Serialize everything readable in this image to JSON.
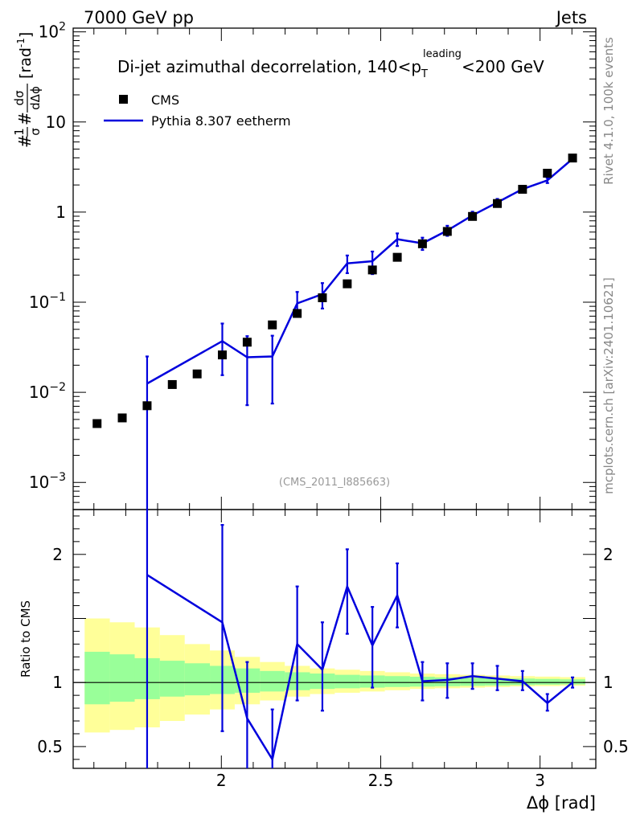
{
  "header": {
    "left": "7000 GeV pp",
    "right": "Jets"
  },
  "side_labels": {
    "rivet": "Rivet 4.1.0,  100k events",
    "mcplots": "mcplots.cern.ch [arXiv:2401.10621]"
  },
  "chart_data": {
    "type": "scatter",
    "title": "Di-jet azimuthal decorrelation, 140<p_T^leading<200 GeV",
    "title_parts": {
      "main": "Di-jet azimuthal decorrelation, 140<p",
      "sub": "T",
      "sup": "leading",
      "tail": "<200 GeV"
    },
    "analysis_tag": "(CMS_2011_I885663)",
    "xlabel": "Δϕ [rad]",
    "ylabel": "#frac{1}{σ}#frac{dσ}{dΔϕ} [rad⁻¹]",
    "ylabel_parts": {
      "pre": "#",
      "frac1_num": "1",
      "frac1_den": "σ",
      "mid": "#",
      "frac2_num": "dσ",
      "frac2_den": "dΔϕ",
      "unit": "[rad",
      "unit_sup": "-1",
      "unit_close": "]"
    },
    "ratio_ylabel": "Ratio to CMS",
    "xlim": [
      1.535,
      3.175
    ],
    "ylim": [
      0.0005,
      110
    ],
    "yscale": "log",
    "ratio_ylim": [
      0.33,
      2.35
    ],
    "x_ticks": [
      {
        "value": 2.0,
        "label": "2"
      },
      {
        "value": 2.5,
        "label": "2.5"
      },
      {
        "value": 3.0,
        "label": "3"
      }
    ],
    "y_ticks": [
      {
        "value": 0.001,
        "base": "10",
        "exp": "−3",
        "label": "10^-3"
      },
      {
        "value": 0.01,
        "base": "10",
        "exp": "−2",
        "label": "10^-2"
      },
      {
        "value": 0.1,
        "base": "10",
        "exp": "−1",
        "label": "10^-1"
      },
      {
        "value": 1,
        "base": "1",
        "exp": "",
        "label": "1"
      },
      {
        "value": 10,
        "base": "10",
        "exp": "",
        "label": "10"
      },
      {
        "value": 100,
        "base": "10",
        "exp": "2",
        "label": "10^2"
      }
    ],
    "ratio_ticks": [
      {
        "value": 0.5,
        "label": "0.5"
      },
      {
        "value": 1,
        "label": "1"
      },
      {
        "value": 2,
        "label": "2"
      }
    ],
    "legend": [
      {
        "name": "CMS",
        "marker": "square",
        "color": "#000000"
      },
      {
        "name": "Pythia 8.307 eetherm",
        "marker": "line",
        "color": "#0000dd"
      }
    ],
    "legend_position": "top-left",
    "series": [
      {
        "name": "CMS",
        "x": [
          1.61,
          1.689,
          1.767,
          1.846,
          1.924,
          2.003,
          2.081,
          2.16,
          2.238,
          2.317,
          2.395,
          2.474,
          2.552,
          2.631,
          2.709,
          2.788,
          2.866,
          2.945,
          3.023,
          3.102
        ],
        "y": [
          0.0045,
          0.0052,
          0.0071,
          0.0122,
          0.016,
          0.026,
          0.036,
          0.056,
          0.075,
          0.112,
          0.16,
          0.228,
          0.315,
          0.445,
          0.61,
          0.895,
          1.245,
          1.79,
          2.7,
          3.98
        ]
      },
      {
        "name": "Pythia 8.307 eetherm",
        "x": [
          1.767,
          2.003,
          2.081,
          2.16,
          2.238,
          2.317,
          2.395,
          2.474,
          2.552,
          2.631,
          2.709,
          2.788,
          2.866,
          2.945,
          3.023,
          3.102
        ],
        "y": [
          0.0125,
          0.037,
          0.0245,
          0.025,
          0.097,
          0.123,
          0.27,
          0.285,
          0.5,
          0.45,
          0.625,
          0.92,
          1.28,
          1.8,
          2.25,
          3.9
        ],
        "yerr_low": [
          0.0125,
          0.0215,
          0.0173,
          0.0175,
          0.027,
          0.038,
          0.06,
          0.08,
          0.08,
          0.07,
          0.08,
          0.09,
          0.12,
          0.12,
          0.15,
          0.15
        ],
        "yerr_high": [
          0.0125,
          0.021,
          0.0175,
          0.0175,
          0.033,
          0.04,
          0.06,
          0.08,
          0.08,
          0.07,
          0.08,
          0.09,
          0.12,
          0.12,
          0.15,
          0.15
        ]
      }
    ],
    "ratio": {
      "x": [
        1.767,
        2.003,
        2.081,
        2.16,
        2.238,
        2.317,
        2.395,
        2.474,
        2.552,
        2.631,
        2.709,
        2.788,
        2.866,
        2.945,
        3.023,
        3.102
      ],
      "y": [
        1.84,
        1.47,
        0.72,
        0.4,
        1.3,
        1.1,
        1.75,
        1.29,
        1.68,
        1.01,
        1.02,
        1.05,
        1.03,
        1.01,
        0.84,
        1.0
      ],
      "lo": [
        0.0,
        0.62,
        0.0,
        0.0,
        0.86,
        0.78,
        1.38,
        0.96,
        1.43,
        0.86,
        0.88,
        0.95,
        0.94,
        0.94,
        0.78,
        0.96
      ],
      "hi": [
        2.35,
        2.23,
        1.16,
        0.79,
        1.75,
        1.47,
        2.04,
        1.59,
        1.93,
        1.16,
        1.15,
        1.15,
        1.13,
        1.09,
        0.91,
        1.04
      ]
    },
    "bands": {
      "edges": [
        1.571,
        1.65,
        1.728,
        1.807,
        1.885,
        1.964,
        2.042,
        2.121,
        2.199,
        2.278,
        2.356,
        2.435,
        2.513,
        2.592,
        2.67,
        2.749,
        2.827,
        2.906,
        2.984,
        3.063,
        3.142
      ],
      "green_lo": [
        0.83,
        0.85,
        0.87,
        0.89,
        0.9,
        0.91,
        0.92,
        0.93,
        0.94,
        0.95,
        0.955,
        0.96,
        0.965,
        0.968,
        0.971,
        0.974,
        0.977,
        0.98,
        0.983,
        0.985
      ],
      "green_hi": [
        1.24,
        1.22,
        1.19,
        1.17,
        1.15,
        1.13,
        1.11,
        1.09,
        1.08,
        1.07,
        1.06,
        1.055,
        1.05,
        1.045,
        1.04,
        1.037,
        1.034,
        1.031,
        1.028,
        1.025
      ],
      "yellow_lo": [
        0.61,
        0.63,
        0.65,
        0.7,
        0.75,
        0.79,
        0.83,
        0.86,
        0.89,
        0.91,
        0.92,
        0.93,
        0.94,
        0.95,
        0.955,
        0.96,
        0.965,
        0.97,
        0.972,
        0.975
      ],
      "yellow_hi": [
        1.5,
        1.47,
        1.43,
        1.37,
        1.3,
        1.25,
        1.2,
        1.16,
        1.13,
        1.11,
        1.1,
        1.09,
        1.08,
        1.07,
        1.065,
        1.06,
        1.055,
        1.05,
        1.046,
        1.042
      ],
      "green_color": "#99ff99",
      "yellow_color": "#ffff99"
    }
  }
}
